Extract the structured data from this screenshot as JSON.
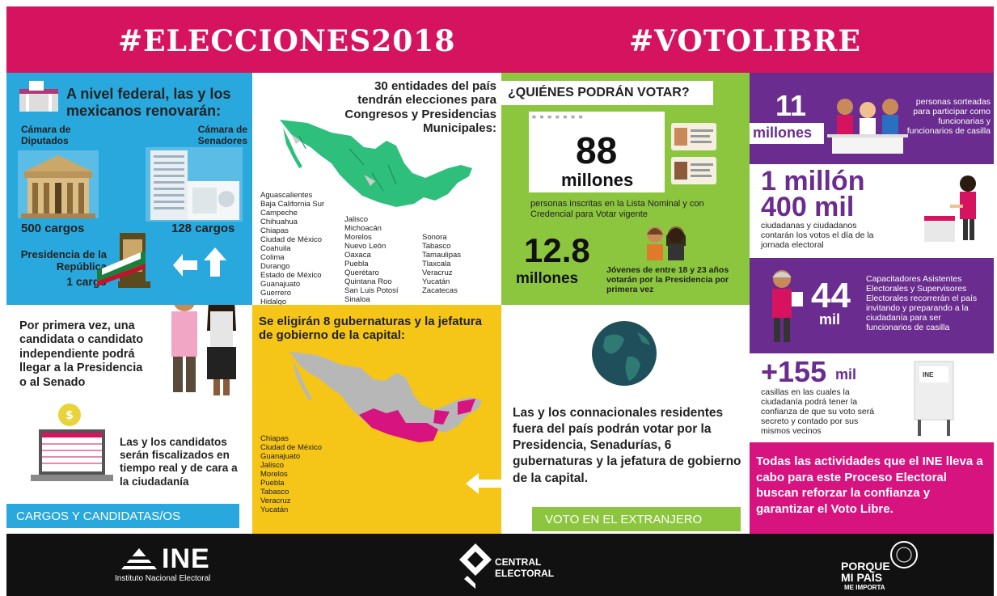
{
  "header": {
    "left_tag": "#ELECCIONES2018",
    "right_tag": "#VOTOLIBRE"
  },
  "colors": {
    "magenta": "#d6135f",
    "blue": "#29a8de",
    "yellow": "#f5c518",
    "green": "#8cc63f",
    "purple": "#6a2c8e",
    "black": "#111111"
  },
  "federal": {
    "heading": "A nivel federal, las y los mexicanos renovarán:",
    "diputados_label": "Cámara de Diputados",
    "senadores_label": "Cámara de Senadores",
    "diputados_cargos": "500 cargos",
    "senadores_cargos": "128 cargos",
    "presidencia_label": "Presidencia de la República",
    "presidencia_cargos": "1 cargo"
  },
  "entidades": {
    "heading": "30 entidades del país tendrán elecciones para Congresos y Presidencias Municipales:",
    "col1": [
      "Aguascalientes",
      "Baja California Sur",
      "Campeche",
      "Chihuahua",
      "Chiapas",
      "Ciudad de México",
      "Coahuila",
      "Colima",
      "Durango",
      "Estado de México",
      "Guanajuato",
      "Guerrero",
      "Hidalgo"
    ],
    "col2": [
      "Jalisco",
      "Michoacán",
      "Morelos",
      "Nuevo León",
      "Oaxaca",
      "Puebla",
      "Querétaro",
      "Quintana Roo",
      "San Luis Potosí",
      "Sinaloa"
    ],
    "col3": [
      "Sonora",
      "Tabasco",
      "Tamaulipas",
      "Tlaxcala",
      "Veracruz",
      "Yucatán",
      "Zacatecas"
    ]
  },
  "quienes": {
    "heading": "¿QUIÉNES PODRÁN VOTAR?",
    "big_number": "88",
    "big_unit": "millones",
    "desc": "personas inscritas en la Lista Nominal y con Credencial para Votar vigente",
    "jovenes_number": "12.8",
    "jovenes_unit": "millones",
    "jovenes_desc": "Jóvenes de entre 18 y 23 años votarán por la Presidencia por primera vez"
  },
  "funcionarios": {
    "number": "11",
    "unit": "millones",
    "desc": "personas sorteadas para participar como funcionarias y funcionarios de casilla"
  },
  "ciudadanos": {
    "number_a": "1 millón",
    "number_b": "400 mil",
    "desc": "ciudadanas y ciudadanos contarán los votos el día de la jornada electoral"
  },
  "capacitadores": {
    "number": "44",
    "unit": "mil",
    "desc": "Capacitadores Asistentes Electorales y Supervisores Electorales recorrerán el país invitando y preparando a la ciudadanía para ser funcionarios de casilla"
  },
  "casillas": {
    "number": "+155",
    "unit": "mil",
    "desc": "casillas en las cuales la ciudadanía podrá tener la confianza de que su voto será secreto y contado por sus mismos vecinos",
    "urn_text": "INE"
  },
  "independiente": {
    "text": "Por primera vez, una candidata o candidato independiente podrá llegar a la Presidencia o al Senado"
  },
  "fiscalizados": {
    "text": "Las y los candidatos serán fiscalizados en tiempo real y de cara a la ciudadanía"
  },
  "gubernaturas": {
    "heading": "Se eligirán 8 gubernaturas y la jefatura de gobierno de la capital:",
    "states": [
      "Chiapas",
      "Ciudad de México",
      "Guanajuato",
      "Jalisco",
      "Morelos",
      "Puebla",
      "Tabasco",
      "Veracruz",
      "Yucatán"
    ]
  },
  "extranjero": {
    "text": "Las y los connacionales residentes fuera del país podrán votar por la Presidencia, Senadurías, 6 gubernaturas y la jefatura de gobierno de la capital.",
    "label": "VOTO EN EL EXTRANJERO"
  },
  "cargos_label": "CARGOS Y CANDIDATAS/OS",
  "conclusion": "Todas las actividades que el INE lleva a cabo para este Proceso Electoral buscan reforzar la confianza y garantizar el Voto Libre.",
  "footer": {
    "ine_logo": "INE",
    "ine_sub": "Instituto Nacional Electoral",
    "central_1": "CENTRAL",
    "central_2": "ELECTORAL",
    "porque_1": "PORQUE",
    "porque_2": "MI PAÍS",
    "porque_3": "ME IMPORTA"
  },
  "icons": [
    "building-icon",
    "skyscraper-icon",
    "flag-icon",
    "arrow-icon",
    "person-icon",
    "laptop-icon",
    "coin-icon",
    "map-icon",
    "globe-icon",
    "id-card-icon",
    "ballot-box-icon"
  ]
}
